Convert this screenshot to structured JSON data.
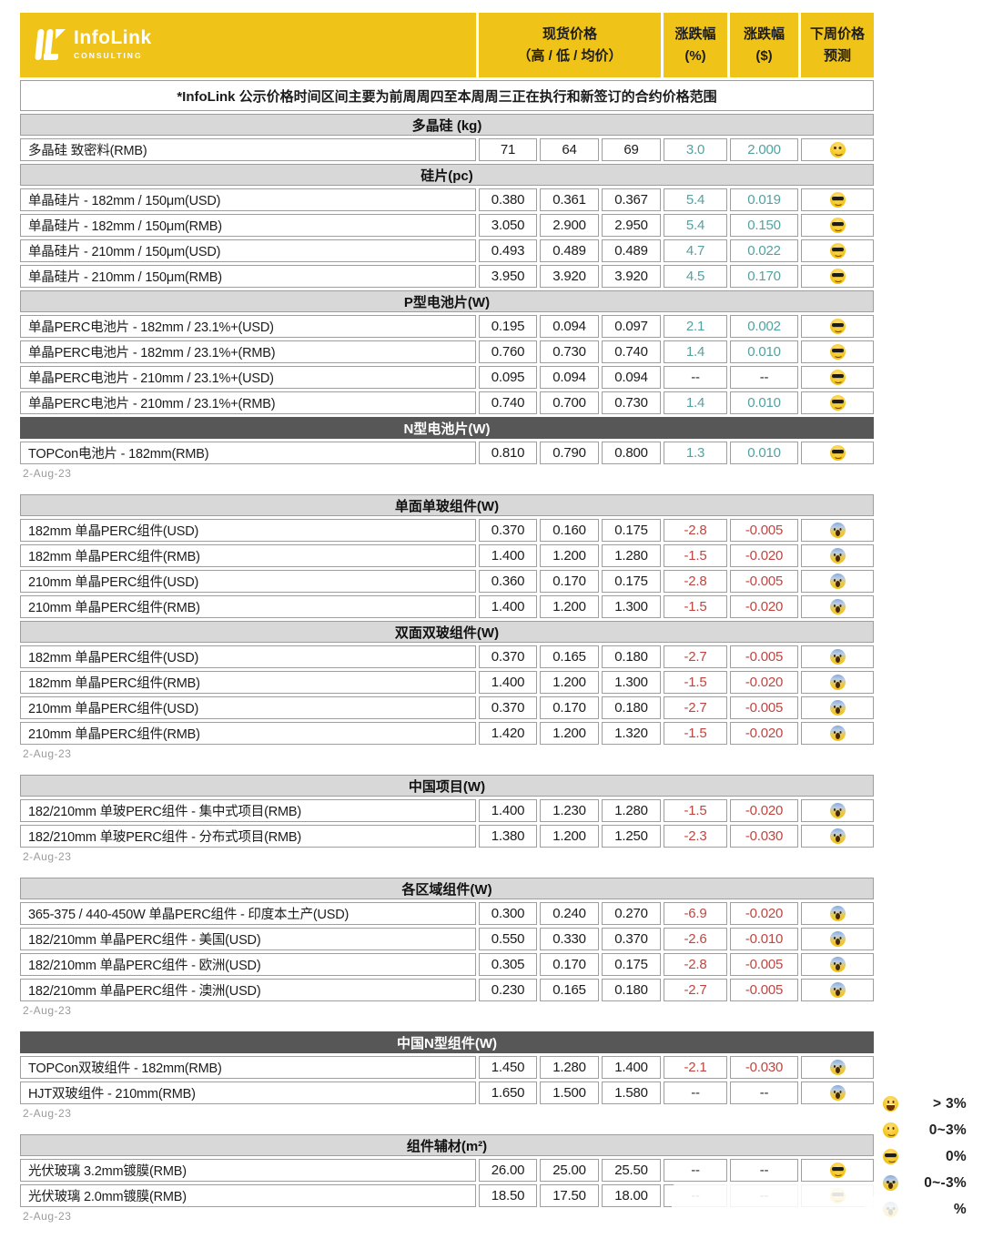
{
  "brand": {
    "name": "InfoLink",
    "tagline": "CONSULTING"
  },
  "table_header": {
    "spot_price": "现货价格",
    "spot_price_sub": "（高 / 低 / 均价）",
    "change_pct": "涨跌幅",
    "change_pct_unit": "(%)",
    "change_usd": "涨跌幅",
    "change_usd_unit": "($)",
    "forecast": "下周价格",
    "forecast_sub": "预测"
  },
  "note": "*InfoLink 公示价格时间区间主要为前周周四至本周周三正在执行和新签订的合约价格范围",
  "date_label": "2-Aug-23",
  "colors": {
    "brand_yellow": "#F0C319",
    "positive": "#55A0A0",
    "negative": "#BE4641",
    "section_light": "#D8D8D8",
    "section_dark": "#575757"
  },
  "legend": [
    {
      "emoji": "grin",
      "label": "> 3%"
    },
    {
      "emoji": "smile",
      "label": "0~3%"
    },
    {
      "emoji": "cool",
      "label": "0%"
    },
    {
      "emoji": "scream",
      "label": "0~-3%"
    },
    {
      "emoji": "cry",
      "label": "%",
      "obscured": true
    }
  ],
  "blocks": [
    {
      "sections": [
        {
          "title": "多晶硅 (kg)",
          "style": "light",
          "rows": [
            {
              "label": "多晶硅 致密料(RMB)",
              "high": "71",
              "low": "64",
              "avg": "69",
              "chg_pct": "3.0",
              "chg_usd": "2.000",
              "trend": "up",
              "forecast": "smile"
            }
          ]
        },
        {
          "title": "硅片(pc)",
          "style": "light",
          "rows": [
            {
              "label": "单晶硅片 - 182mm / 150μm(USD)",
              "high": "0.380",
              "low": "0.361",
              "avg": "0.367",
              "chg_pct": "5.4",
              "chg_usd": "0.019",
              "trend": "up",
              "forecast": "cool"
            },
            {
              "label": "单晶硅片 - 182mm / 150μm(RMB)",
              "high": "3.050",
              "low": "2.900",
              "avg": "2.950",
              "chg_pct": "5.4",
              "chg_usd": "0.150",
              "trend": "up",
              "forecast": "cool"
            },
            {
              "label": "单晶硅片 - 210mm / 150μm(USD)",
              "high": "0.493",
              "low": "0.489",
              "avg": "0.489",
              "chg_pct": "4.7",
              "chg_usd": "0.022",
              "trend": "up",
              "forecast": "cool"
            },
            {
              "label": "单晶硅片 - 210mm / 150μm(RMB)",
              "high": "3.950",
              "low": "3.920",
              "avg": "3.920",
              "chg_pct": "4.5",
              "chg_usd": "0.170",
              "trend": "up",
              "forecast": "cool"
            }
          ]
        },
        {
          "title": "P型电池片(W)",
          "style": "light",
          "rows": [
            {
              "label": "单晶PERC电池片 - 182mm / 23.1%+(USD)",
              "high": "0.195",
              "low": "0.094",
              "avg": "0.097",
              "chg_pct": "2.1",
              "chg_usd": "0.002",
              "trend": "up",
              "forecast": "cool"
            },
            {
              "label": "单晶PERC电池片 - 182mm / 23.1%+(RMB)",
              "high": "0.760",
              "low": "0.730",
              "avg": "0.740",
              "chg_pct": "1.4",
              "chg_usd": "0.010",
              "trend": "up",
              "forecast": "cool"
            },
            {
              "label": "单晶PERC电池片 - 210mm / 23.1%+(USD)",
              "high": "0.095",
              "low": "0.094",
              "avg": "0.094",
              "chg_pct": "--",
              "chg_usd": "--",
              "trend": "flat",
              "forecast": "cool"
            },
            {
              "label": "单晶PERC电池片 - 210mm / 23.1%+(RMB)",
              "high": "0.740",
              "low": "0.700",
              "avg": "0.730",
              "chg_pct": "1.4",
              "chg_usd": "0.010",
              "trend": "up",
              "forecast": "cool"
            }
          ]
        },
        {
          "title": "N型电池片(W)",
          "style": "dark",
          "rows": [
            {
              "label": "TOPCon电池片 - 182mm(RMB)",
              "high": "0.810",
              "low": "0.790",
              "avg": "0.800",
              "chg_pct": "1.3",
              "chg_usd": "0.010",
              "trend": "up",
              "forecast": "cool"
            }
          ]
        }
      ]
    },
    {
      "sections": [
        {
          "title": "单面单玻组件(W)",
          "style": "light",
          "rows": [
            {
              "label": "182mm 单晶PERC组件(USD)",
              "high": "0.370",
              "low": "0.160",
              "avg": "0.175",
              "chg_pct": "-2.8",
              "chg_usd": "-0.005",
              "trend": "down",
              "forecast": "scream"
            },
            {
              "label": "182mm 单晶PERC组件(RMB)",
              "high": "1.400",
              "low": "1.200",
              "avg": "1.280",
              "chg_pct": "-1.5",
              "chg_usd": "-0.020",
              "trend": "down",
              "forecast": "scream"
            },
            {
              "label": "210mm 单晶PERC组件(USD)",
              "high": "0.360",
              "low": "0.170",
              "avg": "0.175",
              "chg_pct": "-2.8",
              "chg_usd": "-0.005",
              "trend": "down",
              "forecast": "scream"
            },
            {
              "label": "210mm 单晶PERC组件(RMB)",
              "high": "1.400",
              "low": "1.200",
              "avg": "1.300",
              "chg_pct": "-1.5",
              "chg_usd": "-0.020",
              "trend": "down",
              "forecast": "scream"
            }
          ]
        },
        {
          "title": "双面双玻组件(W)",
          "style": "light",
          "rows": [
            {
              "label": "182mm 单晶PERC组件(USD)",
              "high": "0.370",
              "low": "0.165",
              "avg": "0.180",
              "chg_pct": "-2.7",
              "chg_usd": "-0.005",
              "trend": "down",
              "forecast": "scream"
            },
            {
              "label": "182mm 单晶PERC组件(RMB)",
              "high": "1.400",
              "low": "1.200",
              "avg": "1.300",
              "chg_pct": "-1.5",
              "chg_usd": "-0.020",
              "trend": "down",
              "forecast": "scream"
            },
            {
              "label": "210mm 单晶PERC组件(USD)",
              "high": "0.370",
              "low": "0.170",
              "avg": "0.180",
              "chg_pct": "-2.7",
              "chg_usd": "-0.005",
              "trend": "down",
              "forecast": "scream"
            },
            {
              "label": "210mm 单晶PERC组件(RMB)",
              "high": "1.420",
              "low": "1.200",
              "avg": "1.320",
              "chg_pct": "-1.5",
              "chg_usd": "-0.020",
              "trend": "down",
              "forecast": "scream"
            }
          ]
        }
      ]
    },
    {
      "sections": [
        {
          "title": "中国项目(W)",
          "style": "light",
          "rows": [
            {
              "label": "182/210mm 单玻PERC组件 - 集中式项目(RMB)",
              "high": "1.400",
              "low": "1.230",
              "avg": "1.280",
              "chg_pct": "-1.5",
              "chg_usd": "-0.020",
              "trend": "down",
              "forecast": "scream"
            },
            {
              "label": "182/210mm 单玻PERC组件 - 分布式项目(RMB)",
              "high": "1.380",
              "low": "1.200",
              "avg": "1.250",
              "chg_pct": "-2.3",
              "chg_usd": "-0.030",
              "trend": "down",
              "forecast": "scream"
            }
          ]
        }
      ]
    },
    {
      "sections": [
        {
          "title": "各区域组件(W)",
          "style": "light",
          "rows": [
            {
              "label": "365-375 / 440-450W 单晶PERC组件 - 印度本土产(USD)",
              "high": "0.300",
              "low": "0.240",
              "avg": "0.270",
              "chg_pct": "-6.9",
              "chg_usd": "-0.020",
              "trend": "down",
              "forecast": "scream"
            },
            {
              "label": "182/210mm 单晶PERC组件 - 美国(USD)",
              "high": "0.550",
              "low": "0.330",
              "avg": "0.370",
              "chg_pct": "-2.6",
              "chg_usd": "-0.010",
              "trend": "down",
              "forecast": "scream"
            },
            {
              "label": "182/210mm 单晶PERC组件 - 欧洲(USD)",
              "high": "0.305",
              "low": "0.170",
              "avg": "0.175",
              "chg_pct": "-2.8",
              "chg_usd": "-0.005",
              "trend": "down",
              "forecast": "scream"
            },
            {
              "label": "182/210mm 单晶PERC组件 - 澳洲(USD)",
              "high": "0.230",
              "low": "0.165",
              "avg": "0.180",
              "chg_pct": "-2.7",
              "chg_usd": "-0.005",
              "trend": "down",
              "forecast": "scream"
            }
          ]
        }
      ]
    },
    {
      "sections": [
        {
          "title": "中国N型组件(W)",
          "style": "dark",
          "rows": [
            {
              "label": "TOPCon双玻组件 - 182mm(RMB)",
              "high": "1.450",
              "low": "1.280",
              "avg": "1.400",
              "chg_pct": "-2.1",
              "chg_usd": "-0.030",
              "trend": "down",
              "forecast": "scream"
            },
            {
              "label": "HJT双玻组件 - 210mm(RMB)",
              "high": "1.650",
              "low": "1.500",
              "avg": "1.580",
              "chg_pct": "--",
              "chg_usd": "--",
              "trend": "flat",
              "forecast": "scream"
            }
          ]
        }
      ]
    },
    {
      "sections": [
        {
          "title": "组件辅材(m²)",
          "style": "light",
          "rows": [
            {
              "label": "光伏玻璃 3.2mm镀膜(RMB)",
              "high": "26.00",
              "low": "25.00",
              "avg": "25.50",
              "chg_pct": "--",
              "chg_usd": "--",
              "trend": "flat",
              "forecast": "cool"
            },
            {
              "label": "光伏玻璃 2.0mm镀膜(RMB)",
              "high": "18.50",
              "low": "17.50",
              "avg": "18.00",
              "chg_pct": "--",
              "chg_usd": "--",
              "trend": "flat",
              "forecast": "cool",
              "obscured": true
            }
          ]
        }
      ]
    }
  ]
}
